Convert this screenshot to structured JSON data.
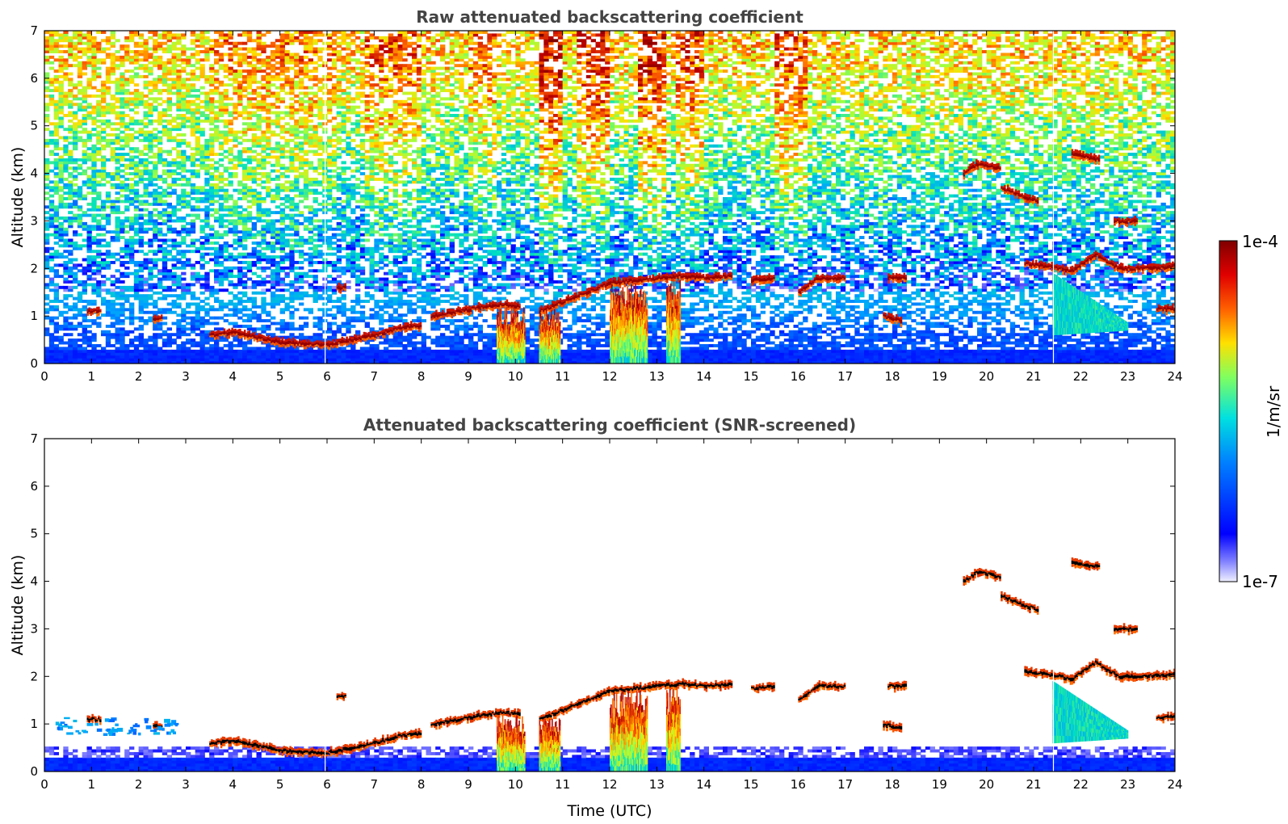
{
  "colormap": [
    "#ffffff",
    "#0000ff",
    "#00a0ff",
    "#00e0c0",
    "#a0ff40",
    "#ffe000",
    "#ff6000",
    "#c00000",
    "#7a0000"
  ],
  "chart_data": [
    {
      "type": "heatmap",
      "title": "Raw attenuated backscattering coefficient",
      "xlabel": "",
      "ylabel": "Altitude (km)",
      "xlim": [
        0,
        24
      ],
      "ylim": [
        0,
        7
      ],
      "xticks": [
        "0",
        "1",
        "2",
        "3",
        "4",
        "5",
        "6",
        "7",
        "8",
        "9",
        "10",
        "11",
        "12",
        "13",
        "14",
        "15",
        "16",
        "17",
        "18",
        "19",
        "20",
        "21",
        "22",
        "23",
        "24"
      ],
      "yticks": [
        "0",
        "1",
        "2",
        "3",
        "4",
        "5",
        "6",
        "7"
      ],
      "screened": false,
      "features": [
        {
          "kind": "layer",
          "points": [
            [
              3.5,
              0.6
            ],
            [
              4.0,
              0.65
            ],
            [
              4.5,
              0.55
            ],
            [
              5.0,
              0.45
            ],
            [
              5.5,
              0.42
            ],
            [
              6.0,
              0.4
            ],
            [
              6.5,
              0.5
            ],
            [
              7.0,
              0.6
            ],
            [
              7.5,
              0.75
            ],
            [
              8.0,
              0.8
            ]
          ]
        },
        {
          "kind": "layer",
          "points": [
            [
              8.2,
              1.0
            ],
            [
              8.8,
              1.1
            ],
            [
              9.3,
              1.2
            ],
            [
              9.7,
              1.25
            ],
            [
              10.1,
              1.2
            ]
          ]
        },
        {
          "kind": "layer",
          "points": [
            [
              10.5,
              1.1
            ],
            [
              11.0,
              1.3
            ],
            [
              11.5,
              1.5
            ],
            [
              12.0,
              1.7
            ],
            [
              12.5,
              1.75
            ],
            [
              13.0,
              1.8
            ],
            [
              13.5,
              1.85
            ],
            [
              14.0,
              1.8
            ],
            [
              14.6,
              1.85
            ]
          ]
        },
        {
          "kind": "layer",
          "points": [
            [
              15.0,
              1.75
            ],
            [
              15.5,
              1.8
            ]
          ]
        },
        {
          "kind": "layer",
          "points": [
            [
              16.0,
              1.5
            ],
            [
              16.4,
              1.8
            ],
            [
              17.0,
              1.8
            ]
          ]
        },
        {
          "kind": "layer",
          "points": [
            [
              17.9,
              1.8
            ],
            [
              18.3,
              1.8
            ]
          ]
        },
        {
          "kind": "layer",
          "points": [
            [
              19.5,
              4.0
            ],
            [
              19.8,
              4.2
            ],
            [
              20.3,
              4.1
            ]
          ]
        },
        {
          "kind": "layer",
          "points": [
            [
              20.3,
              3.7
            ],
            [
              20.8,
              3.5
            ],
            [
              21.1,
              3.4
            ]
          ]
        },
        {
          "kind": "layer",
          "points": [
            [
              21.8,
              4.4
            ],
            [
              22.4,
              4.3
            ]
          ]
        },
        {
          "kind": "layer",
          "points": [
            [
              22.7,
              3.0
            ],
            [
              23.2,
              3.0
            ]
          ]
        },
        {
          "kind": "layer",
          "points": [
            [
              20.8,
              2.1
            ],
            [
              21.3,
              2.05
            ],
            [
              21.8,
              1.95
            ],
            [
              22.3,
              2.3
            ],
            [
              22.8,
              2.0
            ],
            [
              23.3,
              2.0
            ],
            [
              24.0,
              2.05
            ]
          ]
        },
        {
          "kind": "layer",
          "points": [
            [
              23.6,
              1.15
            ],
            [
              24.0,
              1.15
            ]
          ]
        },
        {
          "kind": "layer",
          "points": [
            [
              6.2,
              1.6
            ],
            [
              6.4,
              1.6
            ]
          ]
        },
        {
          "kind": "layer",
          "points": [
            [
              0.9,
              1.1
            ],
            [
              1.2,
              1.1
            ]
          ]
        },
        {
          "kind": "layer",
          "points": [
            [
              2.3,
              0.95
            ],
            [
              2.5,
              0.95
            ]
          ]
        },
        {
          "kind": "layer",
          "points": [
            [
              17.8,
              1.0
            ],
            [
              18.2,
              0.9
            ]
          ]
        },
        {
          "kind": "fall",
          "x0": 9.6,
          "x1": 10.2,
          "top": 1.2
        },
        {
          "kind": "fall",
          "x0": 10.5,
          "x1": 10.95,
          "top": 1.15
        },
        {
          "kind": "fall",
          "x0": 12.0,
          "x1": 12.8,
          "top": 1.7
        },
        {
          "kind": "fall",
          "x0": 13.2,
          "x1": 13.5,
          "top": 1.8
        },
        {
          "kind": "plume",
          "x0": 21.4,
          "x1": 23.0,
          "top": 1.9
        }
      ]
    },
    {
      "type": "heatmap",
      "title": "Attenuated backscattering coefficient (SNR-screened)",
      "xlabel": "Time (UTC)",
      "ylabel": "Altitude (km)",
      "xlim": [
        0,
        24
      ],
      "ylim": [
        0,
        7
      ],
      "xticks": [
        "0",
        "1",
        "2",
        "3",
        "4",
        "5",
        "6",
        "7",
        "8",
        "9",
        "10",
        "11",
        "12",
        "13",
        "14",
        "15",
        "16",
        "17",
        "18",
        "19",
        "20",
        "21",
        "22",
        "23",
        "24"
      ],
      "yticks": [
        "0",
        "1",
        "2",
        "3",
        "4",
        "5",
        "6",
        "7"
      ],
      "screened": true
    }
  ],
  "colorbar": {
    "label": "1/m/sr",
    "max_label": "1e-4",
    "min_label": "1e-7"
  }
}
